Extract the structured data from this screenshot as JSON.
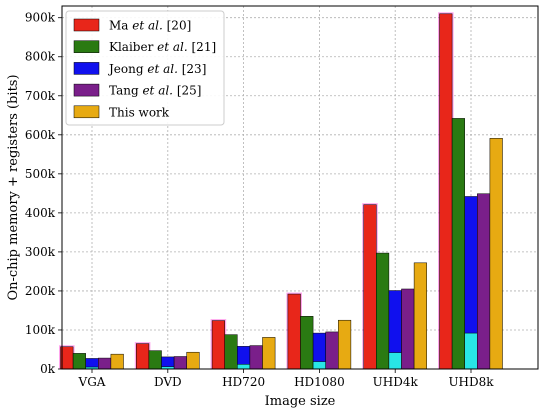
{
  "chart_data": {
    "type": "bar",
    "categories": [
      "VGA",
      "DVD",
      "HD720",
      "HD1080",
      "UHD4k",
      "UHD8k"
    ],
    "series": [
      {
        "name": "Ma et al. [20]",
        "name_parts": [
          "Ma ",
          "et al.",
          " [20]"
        ],
        "color": "#e8261a",
        "highlight": "#ff00cc",
        "values": [
          57000,
          65000,
          124000,
          192000,
          421000,
          910000
        ]
      },
      {
        "name": "Klaiber et al. [21]",
        "name_parts": [
          "Klaiber ",
          "et al.",
          " [21]"
        ],
        "color": "#2a7a12",
        "values": [
          40000,
          47000,
          88000,
          135000,
          297000,
          642000
        ]
      },
      {
        "name": "Jeong et al. [23]",
        "name_parts": [
          "Jeong ",
          "et al.",
          " [23]"
        ],
        "color": "#1010ee",
        "sub_color": "#28e6e6",
        "sub_values": [
          5000,
          6000,
          12000,
          19000,
          42000,
          92000
        ],
        "values": [
          27000,
          31000,
          58000,
          92000,
          201000,
          442000
        ]
      },
      {
        "name": "Tang et al. [25]",
        "name_parts": [
          "Tang ",
          "et al.",
          " [25]"
        ],
        "color": "#7a1f8a",
        "values": [
          28000,
          32000,
          60000,
          95000,
          205000,
          449000
        ]
      },
      {
        "name": "This work",
        "name_parts": [
          "This work",
          "",
          ""
        ],
        "color": "#e7aa12",
        "values": [
          38000,
          43000,
          81000,
          125000,
          272000,
          591000
        ]
      }
    ],
    "xlabel": "Image size",
    "ylabel": "On-chip memory + registers (bits)",
    "ylim": [
      0,
      930000
    ],
    "yticks": [
      {
        "value": 0,
        "label": "0k"
      },
      {
        "value": 100000,
        "label": "100k"
      },
      {
        "value": 200000,
        "label": "200k"
      },
      {
        "value": 300000,
        "label": "300k"
      },
      {
        "value": 400000,
        "label": "400k"
      },
      {
        "value": 500000,
        "label": "500k"
      },
      {
        "value": 600000,
        "label": "600k"
      },
      {
        "value": 700000,
        "label": "700k"
      },
      {
        "value": 800000,
        "label": "800k"
      },
      {
        "value": 900000,
        "label": "900k"
      }
    ],
    "grid": true,
    "legend_position": "top-left"
  }
}
